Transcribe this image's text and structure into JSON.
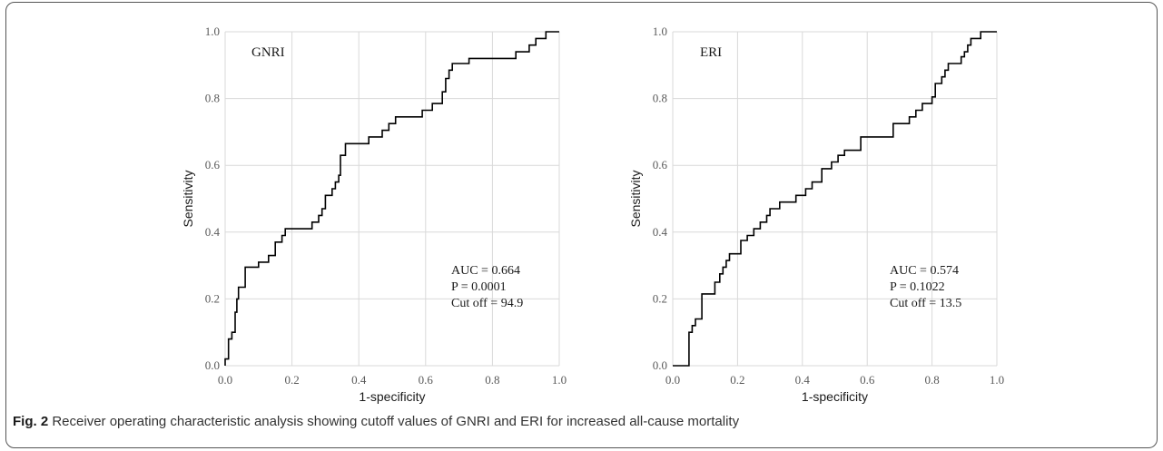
{
  "caption": {
    "label": "Fig. 2",
    "text": "Receiver operating characteristic analysis showing cutoff values of GNRI and ERI for increased all-cause mortality"
  },
  "chart_data": [
    {
      "type": "line",
      "title": "GNRI",
      "xlabel": "1-specificity",
      "ylabel": "Sensitivity",
      "xlim": [
        0,
        1
      ],
      "ylim": [
        0,
        1
      ],
      "xticks": [
        "0.0",
        "0.2",
        "0.4",
        "0.6",
        "0.8",
        "1.0"
      ],
      "yticks": [
        "0.0",
        "0.2",
        "0.4",
        "0.6",
        "0.8",
        "1.0"
      ],
      "grid": true,
      "annotations": [
        "AUC = 0.664",
        "P = 0.0001",
        "Cut off = 94.9"
      ],
      "series": [
        {
          "color": "#000000",
          "points": [
            [
              0.0,
              0.0
            ],
            [
              0.0,
              0.02
            ],
            [
              0.01,
              0.02
            ],
            [
              0.01,
              0.08
            ],
            [
              0.02,
              0.08
            ],
            [
              0.02,
              0.1
            ],
            [
              0.03,
              0.1
            ],
            [
              0.03,
              0.16
            ],
            [
              0.035,
              0.16
            ],
            [
              0.035,
              0.2
            ],
            [
              0.04,
              0.2
            ],
            [
              0.04,
              0.235
            ],
            [
              0.06,
              0.235
            ],
            [
              0.06,
              0.295
            ],
            [
              0.1,
              0.295
            ],
            [
              0.1,
              0.31
            ],
            [
              0.13,
              0.31
            ],
            [
              0.13,
              0.33
            ],
            [
              0.15,
              0.33
            ],
            [
              0.15,
              0.37
            ],
            [
              0.17,
              0.37
            ],
            [
              0.17,
              0.39
            ],
            [
              0.18,
              0.39
            ],
            [
              0.18,
              0.41
            ],
            [
              0.26,
              0.41
            ],
            [
              0.26,
              0.43
            ],
            [
              0.28,
              0.43
            ],
            [
              0.28,
              0.45
            ],
            [
              0.29,
              0.45
            ],
            [
              0.29,
              0.47
            ],
            [
              0.3,
              0.47
            ],
            [
              0.3,
              0.51
            ],
            [
              0.32,
              0.51
            ],
            [
              0.32,
              0.53
            ],
            [
              0.33,
              0.53
            ],
            [
              0.33,
              0.55
            ],
            [
              0.34,
              0.55
            ],
            [
              0.34,
              0.57
            ],
            [
              0.345,
              0.57
            ],
            [
              0.345,
              0.63
            ],
            [
              0.36,
              0.63
            ],
            [
              0.36,
              0.665
            ],
            [
              0.43,
              0.665
            ],
            [
              0.43,
              0.685
            ],
            [
              0.47,
              0.685
            ],
            [
              0.47,
              0.705
            ],
            [
              0.49,
              0.705
            ],
            [
              0.49,
              0.725
            ],
            [
              0.51,
              0.725
            ],
            [
              0.51,
              0.745
            ],
            [
              0.59,
              0.745
            ],
            [
              0.59,
              0.765
            ],
            [
              0.62,
              0.765
            ],
            [
              0.62,
              0.785
            ],
            [
              0.65,
              0.785
            ],
            [
              0.65,
              0.82
            ],
            [
              0.66,
              0.82
            ],
            [
              0.66,
              0.86
            ],
            [
              0.67,
              0.86
            ],
            [
              0.67,
              0.885
            ],
            [
              0.68,
              0.885
            ],
            [
              0.68,
              0.905
            ],
            [
              0.73,
              0.905
            ],
            [
              0.73,
              0.92
            ],
            [
              0.87,
              0.92
            ],
            [
              0.87,
              0.94
            ],
            [
              0.91,
              0.94
            ],
            [
              0.91,
              0.96
            ],
            [
              0.93,
              0.96
            ],
            [
              0.93,
              0.98
            ],
            [
              0.96,
              0.98
            ],
            [
              0.96,
              1.0
            ],
            [
              1.0,
              1.0
            ]
          ]
        }
      ]
    },
    {
      "type": "line",
      "title": "ERI",
      "xlabel": "1-specificity",
      "ylabel": "Sensitivity",
      "xlim": [
        0,
        1
      ],
      "ylim": [
        0,
        1
      ],
      "xticks": [
        "0.0",
        "0.2",
        "0.4",
        "0.6",
        "0.8",
        "1.0"
      ],
      "yticks": [
        "0.0",
        "0.2",
        "0.4",
        "0.6",
        "0.8",
        "1.0"
      ],
      "grid": true,
      "annotations": [
        "AUC = 0.574",
        "P = 0.1022",
        "Cut off = 13.5"
      ],
      "series": [
        {
          "color": "#000000",
          "points": [
            [
              0.0,
              0.0
            ],
            [
              0.05,
              0.0
            ],
            [
              0.05,
              0.1
            ],
            [
              0.06,
              0.1
            ],
            [
              0.06,
              0.12
            ],
            [
              0.07,
              0.12
            ],
            [
              0.07,
              0.14
            ],
            [
              0.09,
              0.14
            ],
            [
              0.09,
              0.215
            ],
            [
              0.13,
              0.215
            ],
            [
              0.13,
              0.25
            ],
            [
              0.145,
              0.25
            ],
            [
              0.145,
              0.275
            ],
            [
              0.155,
              0.275
            ],
            [
              0.155,
              0.295
            ],
            [
              0.165,
              0.295
            ],
            [
              0.165,
              0.315
            ],
            [
              0.175,
              0.315
            ],
            [
              0.175,
              0.335
            ],
            [
              0.21,
              0.335
            ],
            [
              0.21,
              0.375
            ],
            [
              0.23,
              0.375
            ],
            [
              0.23,
              0.39
            ],
            [
              0.25,
              0.39
            ],
            [
              0.25,
              0.41
            ],
            [
              0.27,
              0.41
            ],
            [
              0.27,
              0.43
            ],
            [
              0.29,
              0.43
            ],
            [
              0.29,
              0.45
            ],
            [
              0.3,
              0.45
            ],
            [
              0.3,
              0.47
            ],
            [
              0.33,
              0.47
            ],
            [
              0.33,
              0.49
            ],
            [
              0.38,
              0.49
            ],
            [
              0.38,
              0.51
            ],
            [
              0.41,
              0.51
            ],
            [
              0.41,
              0.53
            ],
            [
              0.43,
              0.53
            ],
            [
              0.43,
              0.55
            ],
            [
              0.46,
              0.55
            ],
            [
              0.46,
              0.59
            ],
            [
              0.49,
              0.59
            ],
            [
              0.49,
              0.61
            ],
            [
              0.51,
              0.61
            ],
            [
              0.51,
              0.63
            ],
            [
              0.53,
              0.63
            ],
            [
              0.53,
              0.645
            ],
            [
              0.58,
              0.645
            ],
            [
              0.58,
              0.685
            ],
            [
              0.68,
              0.685
            ],
            [
              0.68,
              0.725
            ],
            [
              0.73,
              0.725
            ],
            [
              0.73,
              0.745
            ],
            [
              0.75,
              0.745
            ],
            [
              0.75,
              0.765
            ],
            [
              0.77,
              0.765
            ],
            [
              0.77,
              0.785
            ],
            [
              0.8,
              0.785
            ],
            [
              0.8,
              0.805
            ],
            [
              0.81,
              0.805
            ],
            [
              0.81,
              0.845
            ],
            [
              0.83,
              0.845
            ],
            [
              0.83,
              0.865
            ],
            [
              0.84,
              0.865
            ],
            [
              0.84,
              0.885
            ],
            [
              0.85,
              0.885
            ],
            [
              0.85,
              0.905
            ],
            [
              0.89,
              0.905
            ],
            [
              0.89,
              0.925
            ],
            [
              0.9,
              0.925
            ],
            [
              0.9,
              0.94
            ],
            [
              0.91,
              0.94
            ],
            [
              0.91,
              0.96
            ],
            [
              0.92,
              0.96
            ],
            [
              0.92,
              0.98
            ],
            [
              0.95,
              0.98
            ],
            [
              0.95,
              1.0
            ],
            [
              1.0,
              1.0
            ]
          ]
        }
      ]
    }
  ]
}
